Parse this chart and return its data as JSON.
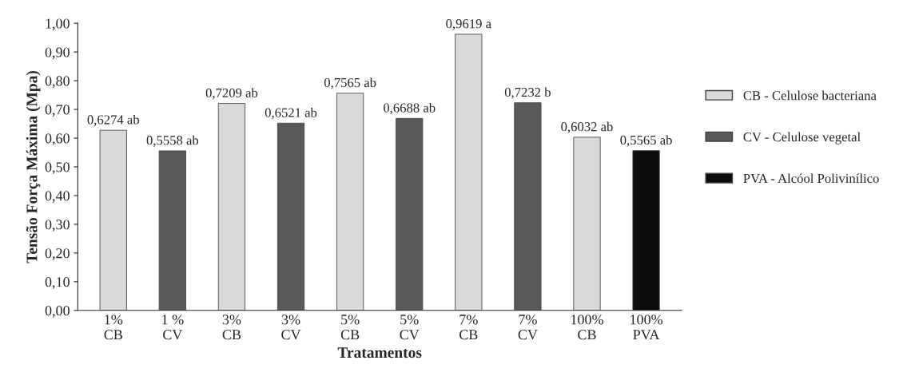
{
  "chart_data": {
    "type": "bar",
    "ylabel": "Tensão Força Máxima (Mpa)",
    "xlabel": "Tratamentos",
    "categories": [
      "1%\nCB",
      "1 %\nCV",
      "3%\nCB",
      "3%\nCV",
      "5%\nCB",
      "5%\nCV",
      "7%\nCB",
      "7%\nCV",
      "100%\nCB",
      "100%\nPVA"
    ],
    "series": [
      {
        "name": "CB - Celulose bacteriana",
        "color": "#d9d9d9",
        "values": [
          0.6274,
          null,
          0.7209,
          null,
          0.7565,
          null,
          0.9619,
          null,
          0.6032,
          null
        ],
        "value_labels": [
          "0,6274 ab",
          null,
          "0,7209 ab",
          null,
          "0,7565 ab",
          null,
          "0,9619 a",
          null,
          "0,6032 ab",
          null
        ]
      },
      {
        "name": "CV - Celulose vegetal",
        "color": "#595959",
        "values": [
          null,
          0.5558,
          null,
          0.6521,
          null,
          0.6688,
          null,
          0.7232,
          null,
          null
        ],
        "value_labels": [
          null,
          "0,5558 ab",
          null,
          "0,6521 ab",
          null,
          "0,6688 ab",
          null,
          "0,7232 b",
          null,
          null
        ]
      },
      {
        "name": "PVA - Alcóol Polivinílico",
        "color": "#0d0d0d",
        "values": [
          null,
          null,
          null,
          null,
          null,
          null,
          null,
          null,
          null,
          0.5565
        ],
        "value_labels": [
          null,
          null,
          null,
          null,
          null,
          null,
          null,
          null,
          null,
          "0,5565 ab"
        ]
      }
    ],
    "ylim": [
      0,
      1.0
    ],
    "yticks": [
      {
        "value": 0,
        "label": "0,00"
      },
      {
        "value": 0.1,
        "label": "0,10"
      },
      {
        "value": 0.2,
        "label": "0,20"
      },
      {
        "value": 0.3,
        "label": "0,30"
      },
      {
        "value": 0.4,
        "label": "0,40"
      },
      {
        "value": 0.5,
        "label": "0,50"
      },
      {
        "value": 0.6,
        "label": "0,60"
      },
      {
        "value": 0.7,
        "label": "0,70"
      },
      {
        "value": 0.8,
        "label": "0,80"
      },
      {
        "value": 0.9,
        "label": "0,90"
      },
      {
        "value": 1.0,
        "label": "1,00"
      }
    ],
    "grid": false,
    "legend": "right"
  }
}
